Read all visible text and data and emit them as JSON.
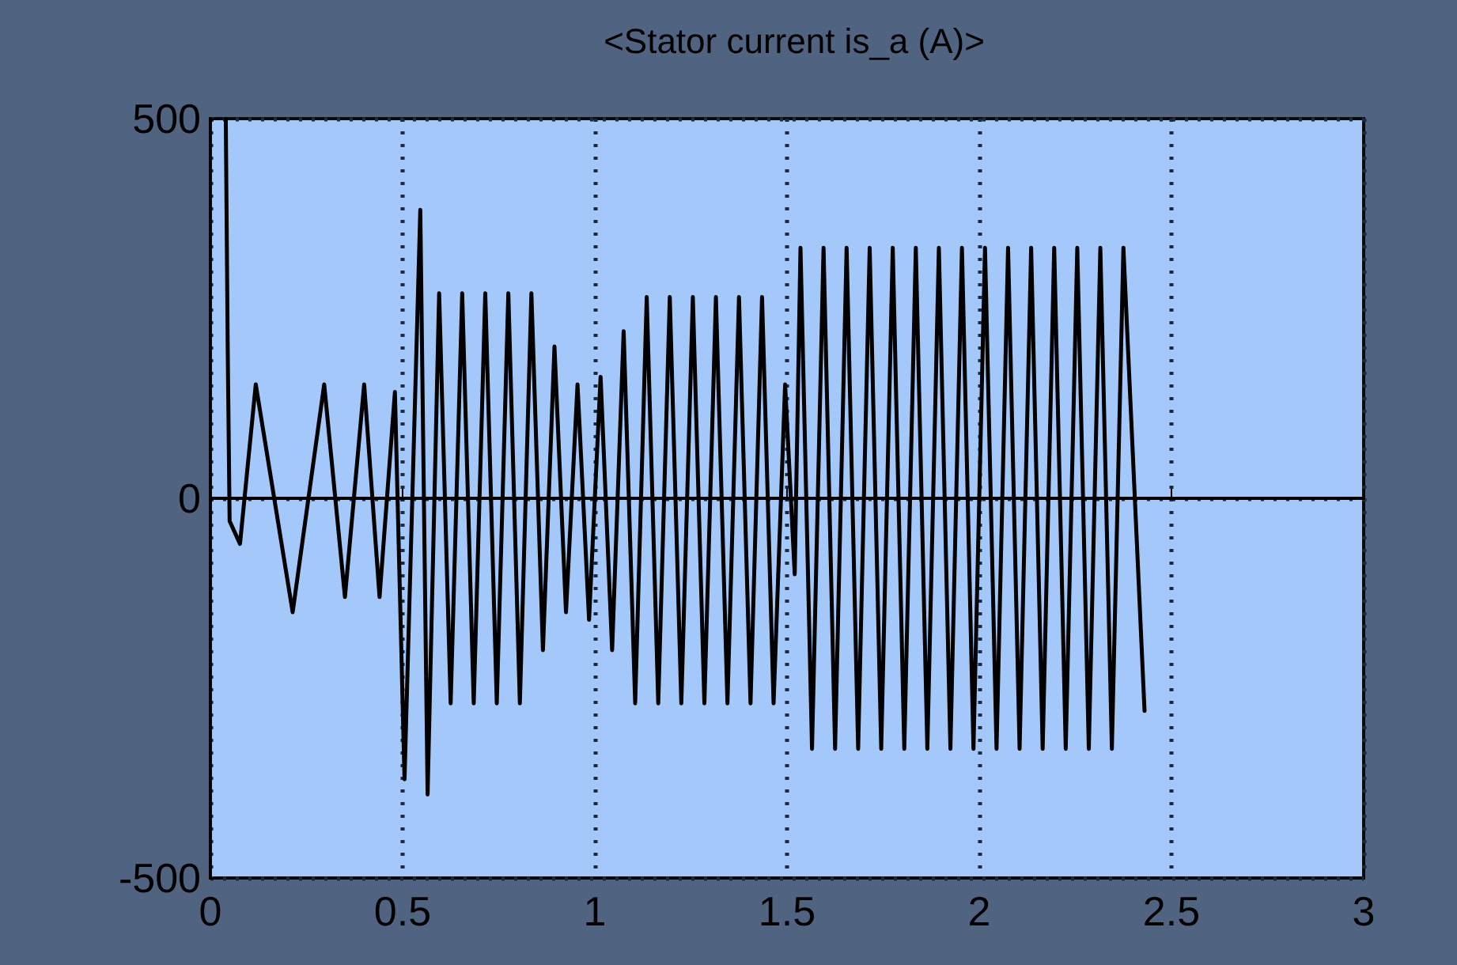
{
  "chart_data": {
    "type": "line",
    "title": "<Stator current is_a (A)>",
    "x": [
      0.04,
      0.045,
      0.05,
      0.077,
      0.118,
      0.214,
      0.296,
      0.35,
      0.4,
      0.44,
      0.48,
      0.505,
      0.546,
      0.565,
      0.595,
      0.625,
      0.655,
      0.685,
      0.715,
      0.745,
      0.775,
      0.805,
      0.835,
      0.865,
      0.895,
      0.925,
      0.955,
      0.985,
      1.015,
      1.045,
      1.075,
      1.105,
      1.135,
      1.165,
      1.195,
      1.225,
      1.255,
      1.285,
      1.315,
      1.345,
      1.375,
      1.405,
      1.435,
      1.465,
      1.495,
      1.52,
      1.535,
      1.565,
      1.595,
      1.625,
      1.655,
      1.685,
      1.715,
      1.745,
      1.775,
      1.805,
      1.835,
      1.865,
      1.895,
      1.925,
      1.955,
      1.985,
      2.015,
      2.045,
      2.075,
      2.105,
      2.135,
      2.165,
      2.195,
      2.225,
      2.255,
      2.285,
      2.315,
      2.345,
      2.375,
      2.43
    ],
    "series": [
      {
        "color": "#000000",
        "values": [
          500,
          200,
          -30,
          -60,
          150,
          -150,
          150,
          -130,
          150,
          -130,
          140,
          -370,
          380,
          -390,
          270,
          -270,
          270,
          -270,
          270,
          -270,
          270,
          -270,
          270,
          -200,
          200,
          -150,
          150,
          -160,
          160,
          -200,
          220,
          -270,
          265,
          -270,
          265,
          -270,
          265,
          -270,
          265,
          -270,
          265,
          -270,
          265,
          -270,
          150,
          -100,
          330,
          -330,
          330,
          -330,
          330,
          -330,
          330,
          -330,
          330,
          -330,
          330,
          -330,
          330,
          -330,
          330,
          -330,
          330,
          -330,
          330,
          -330,
          330,
          -330,
          330,
          -330,
          330,
          -330,
          330,
          -330,
          330,
          -280
        ]
      }
    ],
    "xlim": [
      0,
      3
    ],
    "xticks": [
      0,
      0.5,
      1,
      1.5,
      2,
      2.5,
      3
    ],
    "ylim": [
      -500,
      500
    ],
    "yticks": [
      -500,
      0,
      500
    ],
    "grid": true,
    "marker": "none",
    "line_style": "solid"
  }
}
